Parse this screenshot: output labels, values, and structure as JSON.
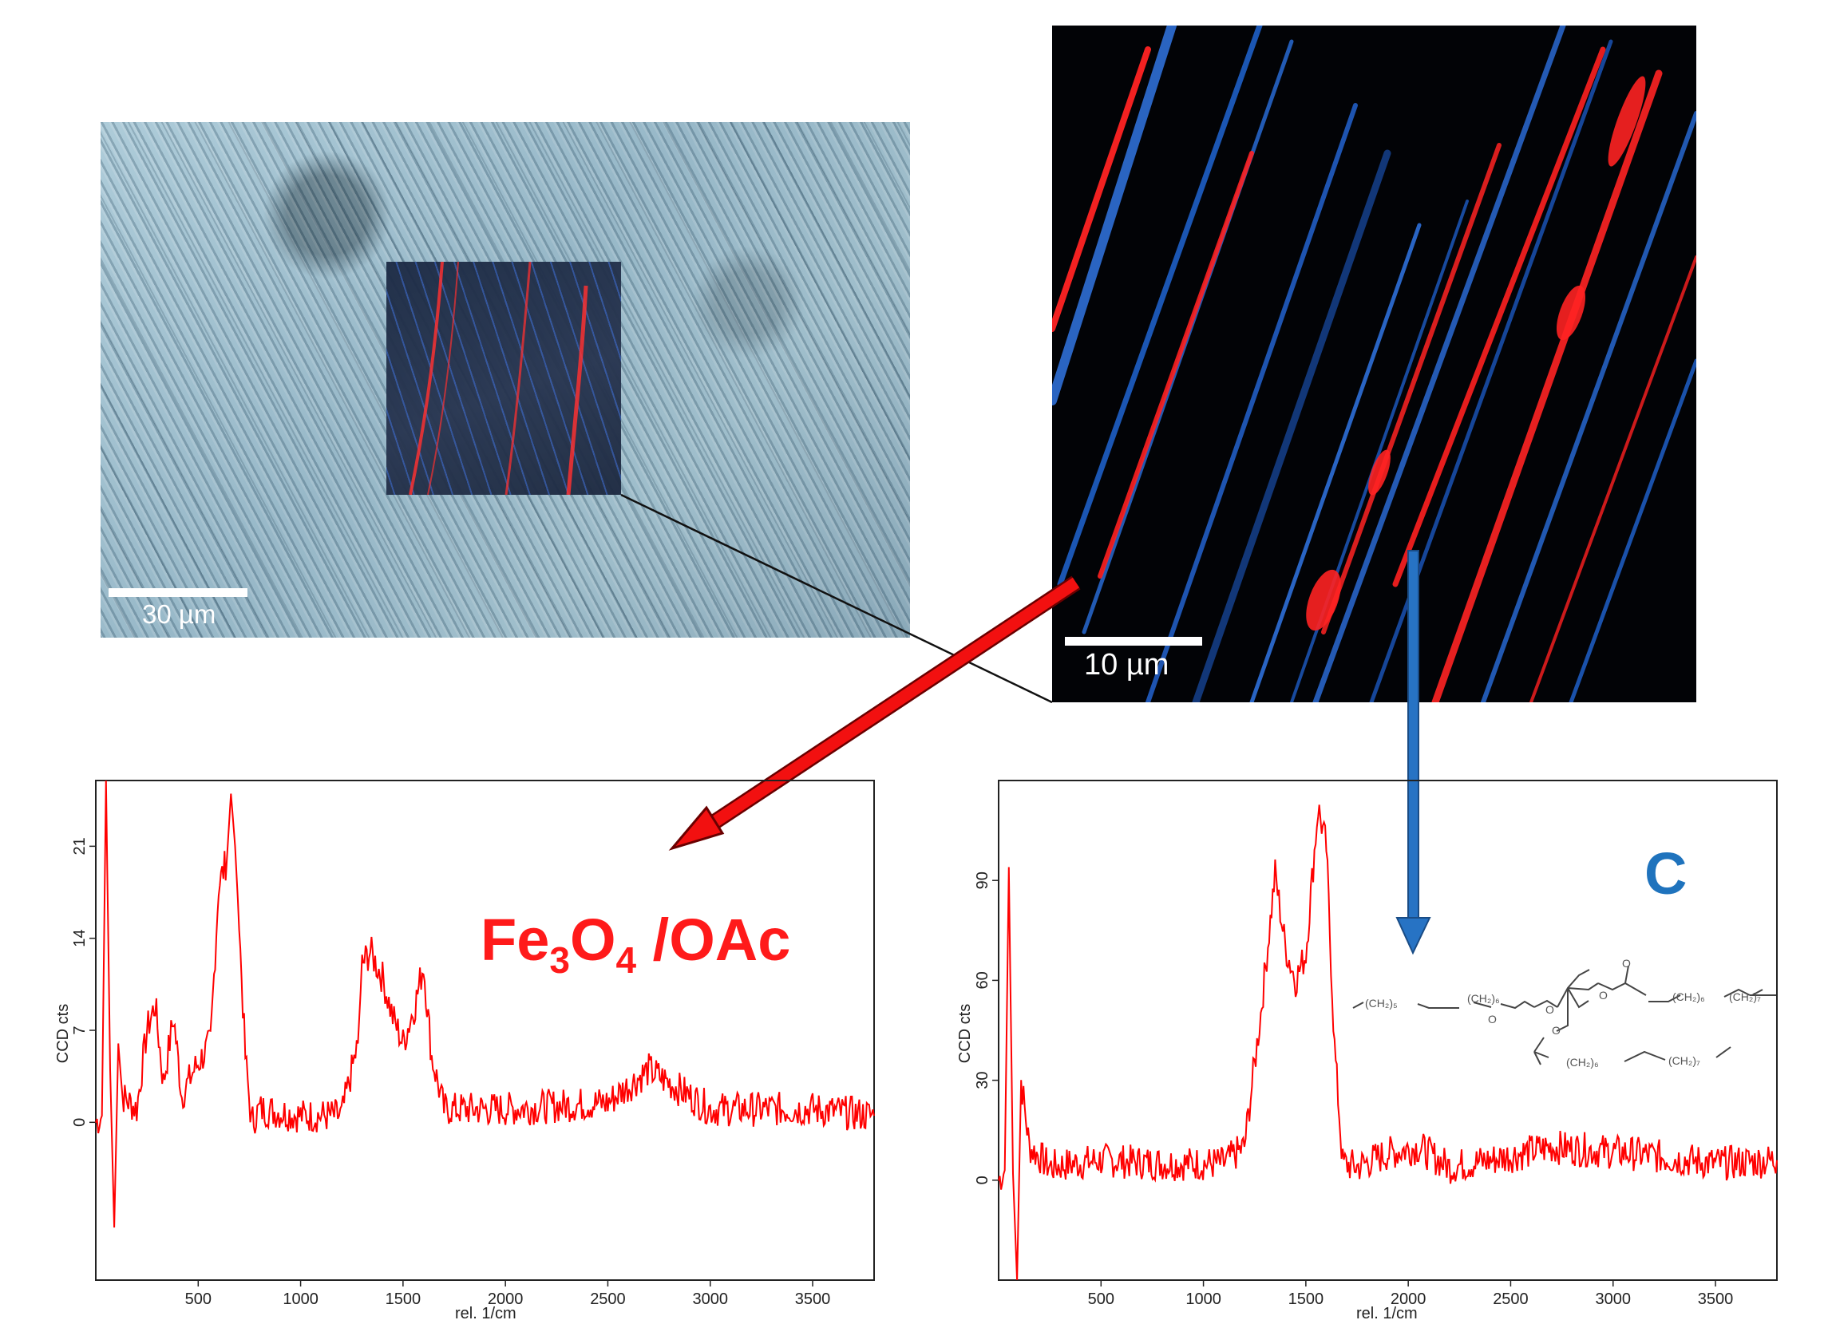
{
  "figure": {
    "optical_scale_label": "30 µm",
    "raman_scale_label": "10 µm",
    "colors": {
      "red_phase": "#ff1a1a",
      "blue_phase": "#1f73bd",
      "spectrum": "#ff0000"
    }
  },
  "labels": {
    "left_component": {
      "main": "Fe",
      "sub1": "3",
      "mid": "O",
      "sub2": "4",
      "tail": " /OAc"
    },
    "right_component": "C"
  },
  "chem_structure": {
    "fragments": [
      "(CH₂)₅",
      "(CH₂)₆",
      "O",
      "O",
      "O",
      "O",
      "O",
      "(CH₂)₆",
      "(CH₂)₇",
      "(CH₂)₆",
      "(CH₂)₇"
    ]
  },
  "chart_data": [
    {
      "type": "line",
      "xlabel": "rel. 1/cm",
      "ylabel": "CCD cts",
      "xlim": [
        0,
        3800
      ],
      "ylim": [
        -12,
        26
      ],
      "xticks": [
        500,
        1000,
        1500,
        2000,
        2500,
        3000,
        3500
      ],
      "yticks": [
        0,
        7,
        14,
        21
      ],
      "series": [
        {
          "x": [
            0,
            30,
            50,
            70,
            90,
            110,
            130,
            200,
            250,
            290,
            330,
            380,
            420,
            480,
            560,
            600,
            640,
            660,
            680,
            700,
            730,
            760,
            800,
            1000,
            1200,
            1280,
            1300,
            1340,
            1400,
            1450,
            1500,
            1560,
            1600,
            1640,
            1700,
            2000,
            2500,
            2700,
            3000,
            3500,
            3800
          ],
          "y": [
            0,
            0.5,
            26,
            4,
            -8,
            6,
            2,
            1,
            7,
            9,
            3,
            8,
            2,
            4,
            6,
            18,
            20,
            25,
            21,
            15,
            5,
            0,
            1,
            0.5,
            0.5,
            6,
            12,
            13,
            11,
            8,
            6,
            9,
            12,
            5,
            1,
            1,
            1.5,
            4,
            1,
            1,
            0.5
          ]
        }
      ]
    },
    {
      "type": "line",
      "xlabel": "rel. 1/cm",
      "ylabel": "CCD cts",
      "xlim": [
        0,
        3800
      ],
      "ylim": [
        -30,
        120
      ],
      "xticks": [
        500,
        1000,
        1500,
        2000,
        2500,
        3000,
        3500
      ],
      "yticks": [
        0,
        30,
        60,
        90
      ],
      "series": [
        {
          "x": [
            0,
            30,
            50,
            70,
            90,
            110,
            150,
            250,
            500,
            800,
            1100,
            1200,
            1280,
            1350,
            1400,
            1450,
            1500,
            1560,
            1600,
            1640,
            1680,
            1750,
            1900,
            2050,
            2200,
            2400,
            2700,
            3100,
            3500,
            3800
          ],
          "y": [
            0,
            3,
            94,
            2,
            -30,
            30,
            10,
            4,
            6,
            5,
            5,
            10,
            50,
            92,
            70,
            60,
            68,
            112,
            100,
            40,
            5,
            4,
            8,
            10,
            4,
            6,
            10,
            8,
            5,
            6
          ]
        }
      ]
    }
  ]
}
